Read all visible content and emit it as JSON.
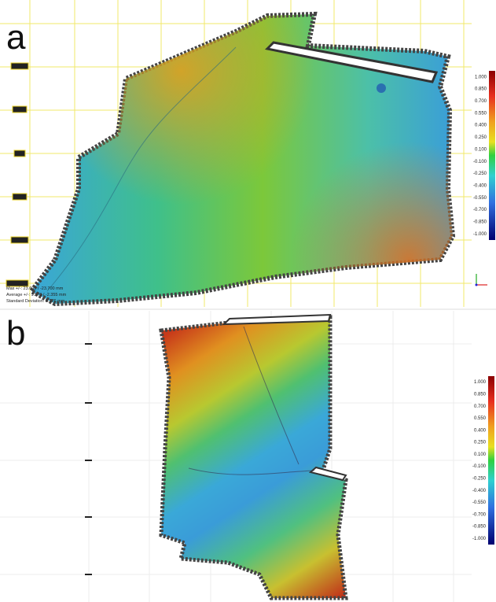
{
  "panel_a": {
    "label": "a",
    "stats": [
      "Max +/-: 23.695 / -23.700 mm",
      "Average +/-: 1.570 / -2.355 mm",
      "Standard Deviation: 5.276 mm"
    ]
  },
  "panel_b": {
    "label": "b"
  },
  "color_scale": {
    "labels": [
      "1.000",
      "0.850",
      "0.700",
      "0.550",
      "0.400",
      "0.250",
      "0.100",
      "-0.100",
      "-0.250",
      "-0.400",
      "-0.550",
      "-0.700",
      "-0.850",
      "-1.000"
    ]
  }
}
